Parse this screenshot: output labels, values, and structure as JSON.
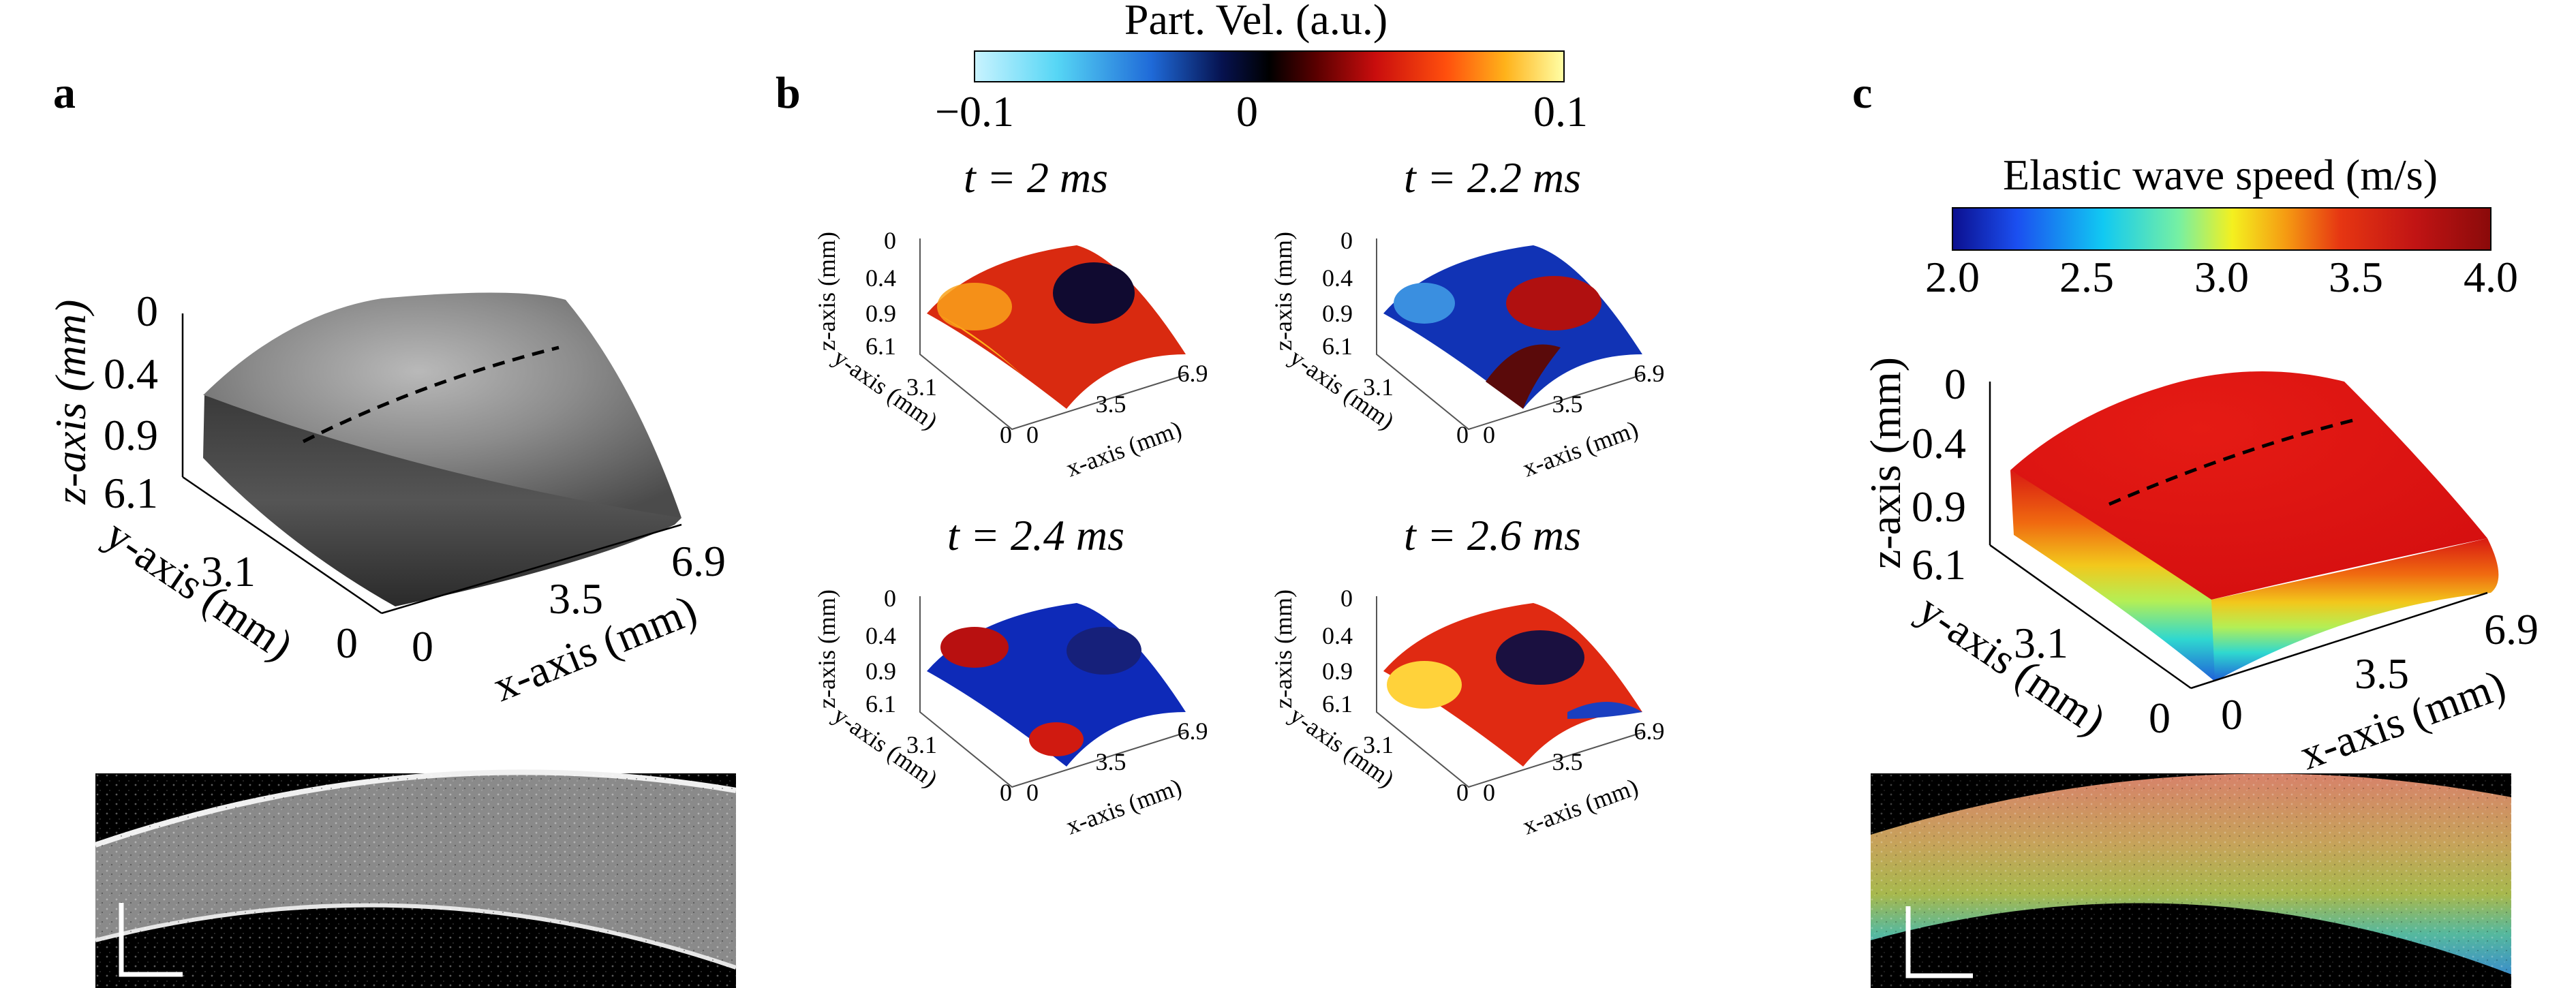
{
  "panels": {
    "a": {
      "label": "a",
      "axes": {
        "z_label": "z-axis (mm)",
        "y_label": "y-axis (mm)",
        "x_label": "x-axis (mm)",
        "z_ticks": [
          "0",
          "0.4",
          "0.9"
        ],
        "y_ticks": [
          "6.1",
          "3.1",
          "0"
        ],
        "x_ticks": [
          "0",
          "3.5",
          "6.9"
        ]
      }
    },
    "b": {
      "label": "b",
      "colorbar": {
        "title": "Part. Vel. (a.u.)",
        "ticks": [
          "−0.1",
          "0",
          "0.1"
        ],
        "colors": [
          "#c9f3ff",
          "#56d6f5",
          "#1f6ad8",
          "#06124f",
          "#000000",
          "#5a0000",
          "#c90d0d",
          "#ff4f0d",
          "#ffb21a",
          "#ffffa6"
        ]
      },
      "subplots": [
        {
          "time": "t = 2 ms"
        },
        {
          "time": "t = 2.2 ms"
        },
        {
          "time": "t = 2.4 ms"
        },
        {
          "time": "t = 2.6 ms"
        }
      ],
      "axes": {
        "z_label": "z-axis (mm)",
        "y_label": "y-axis (mm)",
        "x_label": "x-axis (mm)",
        "z_ticks": [
          "0",
          "0.4",
          "0.9"
        ],
        "y_ticks": [
          "6.1",
          "3.1",
          "0"
        ],
        "x_ticks": [
          "0",
          "3.5",
          "6.9"
        ]
      }
    },
    "c": {
      "label": "c",
      "colorbar": {
        "title": "Elastic wave speed (m/s)",
        "ticks": [
          "2.0",
          "2.5",
          "3.0",
          "3.5",
          "4.0"
        ],
        "colors": [
          "#0b0f8f",
          "#1b4ff0",
          "#11c9f2",
          "#76f0a3",
          "#f4f01f",
          "#f59a12",
          "#e63612",
          "#c11414",
          "#8a0a0a"
        ]
      },
      "axes": {
        "z_label": "z-axis (mm)",
        "y_label": "y-axis (mm)",
        "x_label": "x-axis (mm)",
        "z_ticks": [
          "0",
          "0.4",
          "0.9"
        ],
        "y_ticks": [
          "6.1",
          "3.1",
          "0"
        ],
        "x_ticks": [
          "0",
          "3.5",
          "6.9"
        ]
      }
    }
  }
}
